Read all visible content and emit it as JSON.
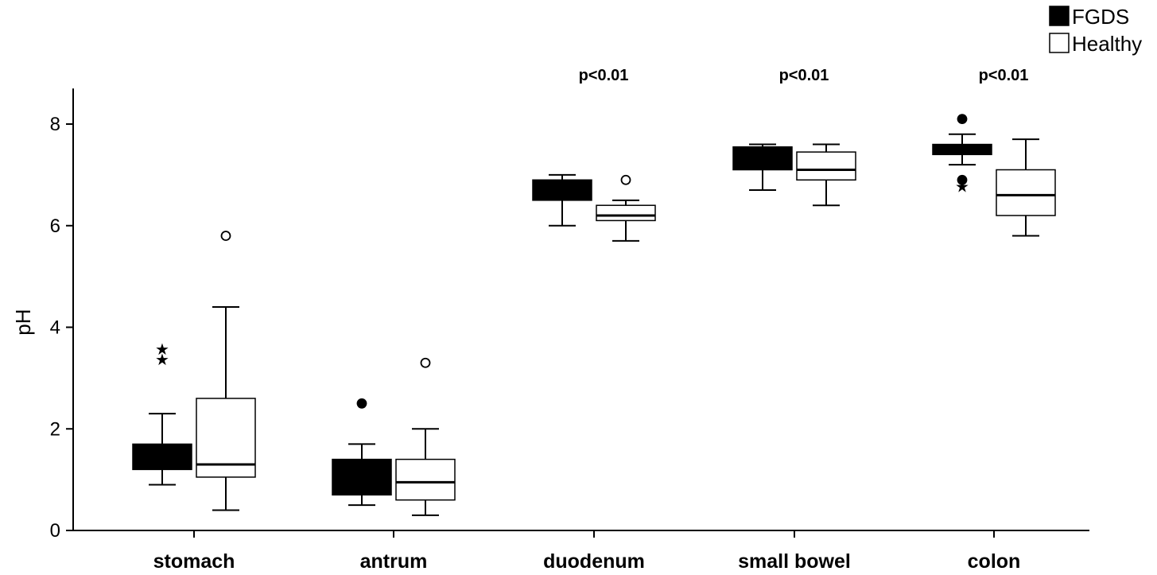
{
  "chart_data": {
    "type": "boxplot",
    "title": "",
    "xlabel": "",
    "ylabel": "pH",
    "ylim": [
      0,
      8.7
    ],
    "yticks": [
      0,
      2,
      4,
      6,
      8
    ],
    "categories": [
      "stomach",
      "antrum",
      "duodenum",
      "small bowel",
      "colon"
    ],
    "legend": {
      "placement": "top-right",
      "entries": [
        {
          "name": "FGDS",
          "fill": "#000000"
        },
        {
          "name": "Healthy",
          "fill": "#ffffff"
        }
      ]
    },
    "annotations": [
      "",
      "",
      "p<0.01",
      "p<0.01",
      "p<0.01"
    ],
    "series": [
      {
        "name": "FGDS",
        "fill": "#000000",
        "boxes": [
          {
            "min": 0.9,
            "q1": 1.2,
            "median": 1.45,
            "q3": 1.7,
            "max": 2.3,
            "outliers": [],
            "extremes": [
              3.4,
              3.6
            ]
          },
          {
            "min": 0.5,
            "q1": 0.7,
            "median": 1.05,
            "q3": 1.4,
            "max": 1.7,
            "outliers": [
              2.5
            ],
            "extremes": []
          },
          {
            "min": 6.0,
            "q1": 6.5,
            "median": 6.7,
            "q3": 6.9,
            "max": 7.0,
            "outliers": [],
            "extremes": []
          },
          {
            "min": 6.7,
            "q1": 7.1,
            "median": 7.35,
            "q3": 7.55,
            "max": 7.6,
            "outliers": [],
            "extremes": []
          },
          {
            "min": 7.2,
            "q1": 7.4,
            "median": 7.5,
            "q3": 7.6,
            "max": 7.8,
            "outliers": [
              8.1,
              6.9
            ],
            "extremes": [
              6.8
            ]
          }
        ]
      },
      {
        "name": "Healthy",
        "fill": "#ffffff",
        "boxes": [
          {
            "min": 0.4,
            "q1": 1.05,
            "median": 1.3,
            "q3": 2.6,
            "max": 4.4,
            "outliers": [
              5.8
            ],
            "extremes": []
          },
          {
            "min": 0.3,
            "q1": 0.6,
            "median": 0.95,
            "q3": 1.4,
            "max": 2.0,
            "outliers": [
              3.3
            ],
            "extremes": []
          },
          {
            "min": 5.7,
            "q1": 6.1,
            "median": 6.2,
            "q3": 6.4,
            "max": 6.5,
            "outliers": [
              6.9
            ],
            "extremes": []
          },
          {
            "min": 6.4,
            "q1": 6.9,
            "median": 7.1,
            "q3": 7.45,
            "max": 7.6,
            "outliers": [],
            "extremes": []
          },
          {
            "min": 5.8,
            "q1": 6.2,
            "median": 6.6,
            "q3": 7.1,
            "max": 7.7,
            "outliers": [],
            "extremes": []
          }
        ]
      }
    ]
  }
}
